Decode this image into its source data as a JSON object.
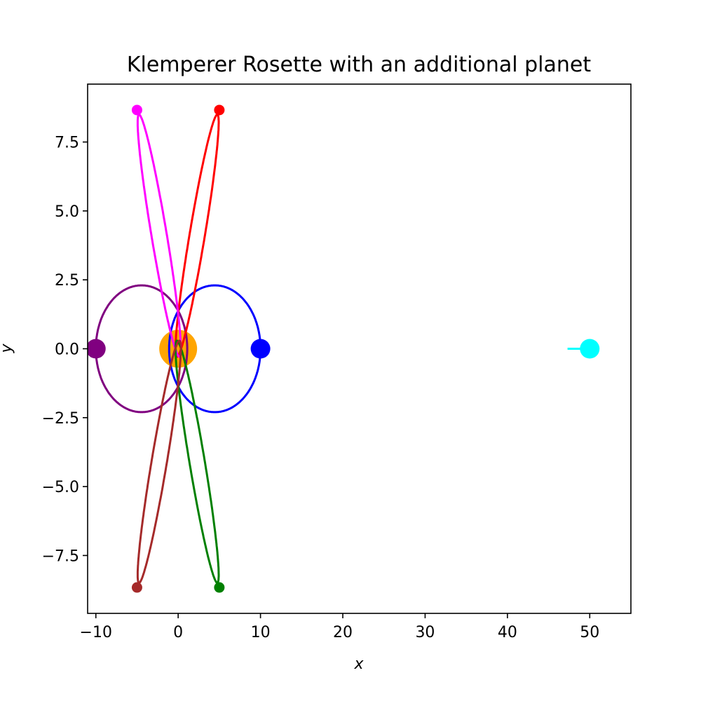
{
  "chart_data": {
    "type": "line",
    "title": "Klemperer Rosette with an additional planet",
    "xlabel": "x",
    "ylabel": "y",
    "xlim": [
      -11,
      55
    ],
    "ylim": [
      -9.6,
      9.6
    ],
    "xticks": [
      -10,
      0,
      10,
      20,
      30,
      40,
      50
    ],
    "xtick_labels": [
      "−10",
      "0",
      "10",
      "20",
      "30",
      "40",
      "50"
    ],
    "yticks": [
      -7.5,
      -5.0,
      -2.5,
      0.0,
      2.5,
      5.0,
      7.5
    ],
    "ytick_labels": [
      "−7.5",
      "−5.0",
      "−2.5",
      "0.0",
      "2.5",
      "5.0",
      "7.5"
    ],
    "grid": false,
    "star": {
      "x": 0,
      "y": 0,
      "color": "#FFA500"
    },
    "series": [
      {
        "color": "#0000FF",
        "kind": "orbit",
        "center": [
          4.45,
          0
        ],
        "a": 5.55,
        "b": 2.3,
        "angle_deg": 0,
        "marker": [
          10,
          0
        ],
        "marker_size": "large"
      },
      {
        "color": "#800080",
        "kind": "orbit",
        "center": [
          -4.45,
          0
        ],
        "a": 5.55,
        "b": 2.3,
        "angle_deg": 0,
        "marker": [
          -10,
          0
        ],
        "marker_size": "large"
      },
      {
        "color": "#FF0000",
        "kind": "orbit",
        "center": [
          2.3,
          4.1
        ],
        "a": 5.05,
        "b": 0.82,
        "angle_deg": 60,
        "marker": [
          5,
          8.66
        ],
        "marker_size": "small"
      },
      {
        "color": "#FF00FF",
        "kind": "orbit",
        "center": [
          -2.3,
          4.1
        ],
        "a": 5.05,
        "b": 0.82,
        "angle_deg": 120,
        "marker": [
          -5,
          8.66
        ],
        "marker_size": "small"
      },
      {
        "color": "#008000",
        "kind": "orbit",
        "center": [
          2.3,
          -4.1
        ],
        "a": 5.05,
        "b": 0.82,
        "angle_deg": -60,
        "marker": [
          5,
          -8.66
        ],
        "marker_size": "small"
      },
      {
        "color": "#A52A2A",
        "kind": "orbit",
        "center": [
          -2.3,
          -4.1
        ],
        "a": 5.05,
        "b": 0.82,
        "angle_deg": -120,
        "marker": [
          -5,
          -8.66
        ],
        "marker_size": "small"
      },
      {
        "color": "#00FFFF",
        "kind": "path",
        "x": [
          47.3,
          50
        ],
        "y": [
          0,
          0
        ],
        "marker": [
          50,
          0
        ],
        "marker_size": "large"
      }
    ]
  }
}
